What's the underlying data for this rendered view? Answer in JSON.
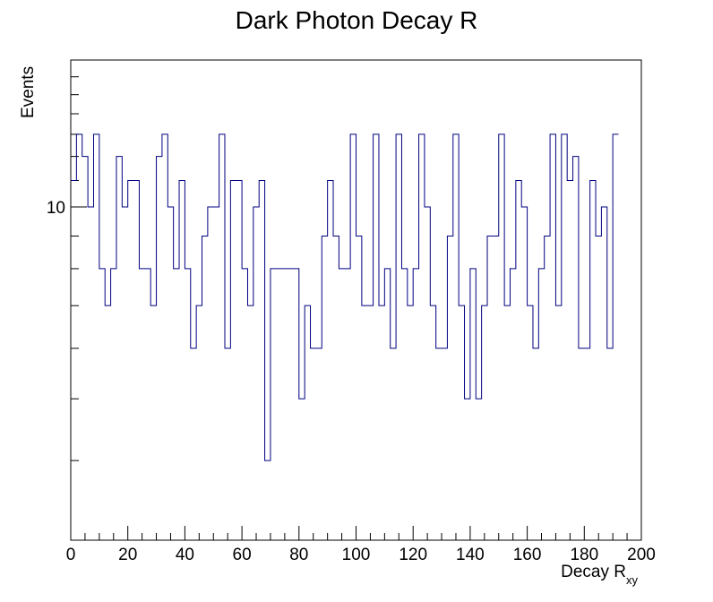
{
  "chart_data": {
    "type": "histogram",
    "title": "Dark Photon Decay R",
    "xlabel_main": "Decay R",
    "xlabel_sub": "xy",
    "ylabel": "Events",
    "y_scale": "log",
    "xlim": [
      0,
      200
    ],
    "ylim": [
      3,
      17
    ],
    "bin_width": 2,
    "x_ticks": [
      "0",
      "20",
      "40",
      "60",
      "80",
      "100",
      "120",
      "140",
      "160",
      "180",
      "200"
    ],
    "y_tick_labels": [
      {
        "value": 10,
        "label": "10"
      }
    ],
    "line_color": "#000080",
    "values": [
      11,
      13,
      12,
      10,
      13,
      8,
      7,
      8,
      12,
      10,
      11,
      11,
      8,
      8,
      7,
      12,
      13,
      10,
      8,
      11,
      8,
      6,
      7,
      9,
      10,
      10,
      13,
      6,
      11,
      11,
      8,
      7,
      10,
      11,
      4,
      8,
      8,
      8,
      8,
      8,
      5,
      7,
      6,
      6,
      9,
      11,
      9,
      8,
      8,
      13,
      9,
      7,
      7,
      13,
      7,
      8,
      6,
      13,
      8,
      7,
      8,
      13,
      10,
      7,
      6,
      6,
      9,
      13,
      7,
      5,
      8,
      5,
      7,
      9,
      9,
      13,
      7,
      8,
      11,
      10,
      7,
      6,
      8,
      9,
      13,
      7,
      13,
      11,
      12,
      6,
      6,
      11,
      9,
      10,
      6,
      13
    ]
  }
}
